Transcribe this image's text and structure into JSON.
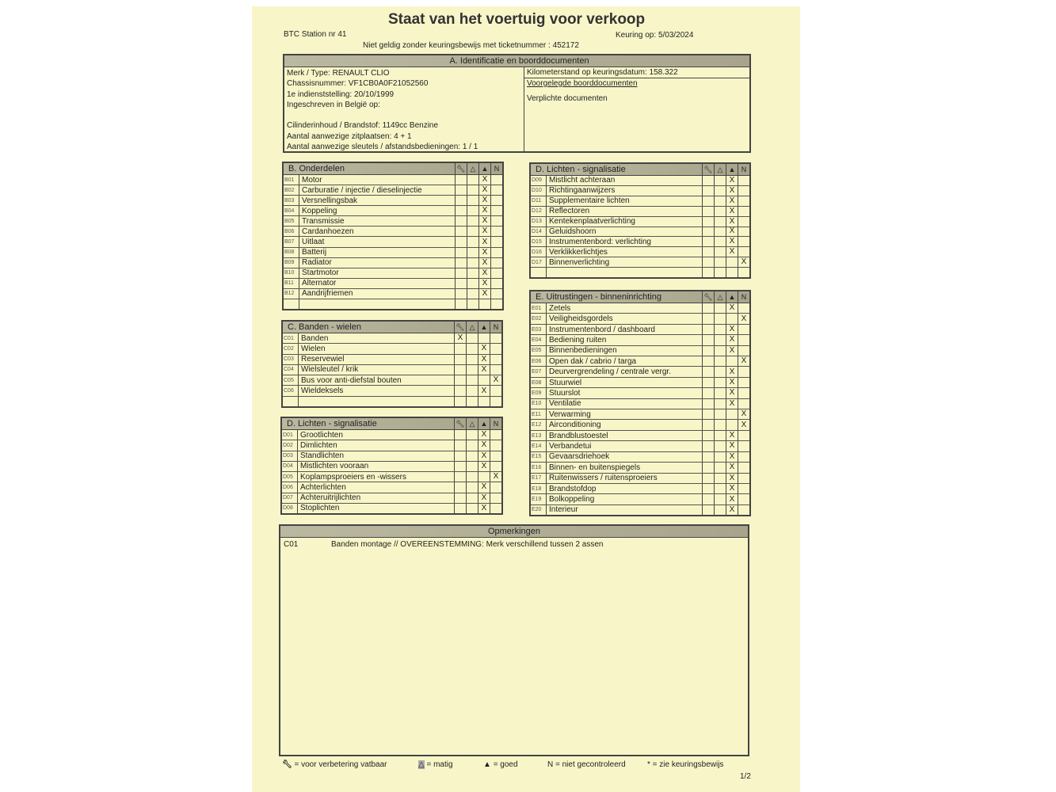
{
  "header": {
    "title": "Staat van het voertuig voor verkoop",
    "station": "BTC Station nr 41",
    "keuring_label": "Keuring op:",
    "keuring_date": "5/03/2024",
    "ticket_note": "Niet geldig zonder keuringsbewijs met ticketnummer :",
    "ticket_number": "452172"
  },
  "identificatie": {
    "title": "A. Identificatie en boorddocumenten",
    "left": [
      "Merk / Type:  RENAULT CLIO",
      "Chassisnummer:  VF1CB0A0F21052560",
      "1e indienststelling:  20/10/1999",
      "Ingeschreven in België op:",
      "",
      "Cilinderinhoud / Brandstof:  1149cc Benzine",
      "Aantal aanwezige zitplaatsen:  4 + 1",
      "Aantal aanwezige sleutels / afstandsbedieningen:  1 / 1"
    ],
    "km_label": "Kilometerstand op keuringsdatum:",
    "km_value": "158.322",
    "docs_label": "Voorgelegde boorddocumenten",
    "verplicht": "Verplichte documenten"
  },
  "columns": {
    "verbetering": "wrench-icon",
    "matig": "warning-triangle-icon",
    "goed": "thumbs-up-icon",
    "niet": "N"
  },
  "tables": {
    "b": {
      "title": "B. Onderdelen",
      "blank": true,
      "items": [
        {
          "code": "B01",
          "name": "Motor",
          "mark": "goed"
        },
        {
          "code": "B02",
          "name": "Carburatie / injectie / dieselinjectie",
          "mark": "goed"
        },
        {
          "code": "B03",
          "name": "Versnellingsbak",
          "mark": "goed"
        },
        {
          "code": "B04",
          "name": "Koppeling",
          "mark": "goed"
        },
        {
          "code": "B05",
          "name": "Transmissie",
          "mark": "goed"
        },
        {
          "code": "B06",
          "name": "Cardanhoezen",
          "mark": "goed"
        },
        {
          "code": "B07",
          "name": "Uitlaat",
          "mark": "goed"
        },
        {
          "code": "B08",
          "name": "Batterij",
          "mark": "goed"
        },
        {
          "code": "B09",
          "name": "Radiator",
          "mark": "goed"
        },
        {
          "code": "B10",
          "name": "Startmotor",
          "mark": "goed"
        },
        {
          "code": "B11",
          "name": "Alternator",
          "mark": "goed"
        },
        {
          "code": "B12",
          "name": "Aandrijfriemen",
          "mark": "goed"
        }
      ]
    },
    "c": {
      "title": "C. Banden - wielen",
      "blank": true,
      "items": [
        {
          "code": "C01",
          "name": "Banden",
          "mark": "verbetering"
        },
        {
          "code": "C02",
          "name": "Wielen",
          "mark": "goed"
        },
        {
          "code": "C03",
          "name": "Reservewiel",
          "mark": "goed"
        },
        {
          "code": "C04",
          "name": "Wielsleutel / krik",
          "mark": "goed"
        },
        {
          "code": "C05",
          "name": "Bus voor anti-diefstal bouten",
          "mark": "niet"
        },
        {
          "code": "C06",
          "name": "Wieldeksels",
          "mark": "goed"
        }
      ]
    },
    "d1": {
      "title": "D. Lichten - signalisatie",
      "blank": false,
      "items": [
        {
          "code": "D01",
          "name": "Grootlichten",
          "mark": "goed"
        },
        {
          "code": "D02",
          "name": "Dimlichten",
          "mark": "goed"
        },
        {
          "code": "D03",
          "name": "Standlichten",
          "mark": "goed"
        },
        {
          "code": "D04",
          "name": "Mistlichten vooraan",
          "mark": "goed"
        },
        {
          "code": "D05",
          "name": "Koplampsproeiers en -wissers",
          "mark": "niet"
        },
        {
          "code": "D06",
          "name": "Achterlichten",
          "mark": "goed"
        },
        {
          "code": "D07",
          "name": "Achteruitrijlichten",
          "mark": "goed"
        },
        {
          "code": "D08",
          "name": "Stoplichten",
          "mark": "goed"
        }
      ]
    },
    "d2": {
      "title": "D. Lichten - signalisatie",
      "blank": true,
      "items": [
        {
          "code": "D09",
          "name": "Mistlicht achteraan",
          "mark": "goed"
        },
        {
          "code": "D10",
          "name": "Richtingaanwijzers",
          "mark": "goed"
        },
        {
          "code": "D11",
          "name": "Supplementaire lichten",
          "mark": "goed"
        },
        {
          "code": "D12",
          "name": "Reflectoren",
          "mark": "goed"
        },
        {
          "code": "D13",
          "name": "Kentekenplaatverlichting",
          "mark": "goed"
        },
        {
          "code": "D14",
          "name": "Geluidshoorn",
          "mark": "goed"
        },
        {
          "code": "D15",
          "name": "Instrumentenbord: verlichting",
          "mark": "goed"
        },
        {
          "code": "D16",
          "name": "Verklikkerlichtjes",
          "mark": "goed"
        },
        {
          "code": "D17",
          "name": "Binnenverlichting",
          "mark": "niet"
        }
      ]
    },
    "e": {
      "title": "E. Uitrustingen - binneninrichting",
      "blank": false,
      "items": [
        {
          "code": "E01",
          "name": "Zetels",
          "mark": "goed"
        },
        {
          "code": "E02",
          "name": "Veiligheidsgordels",
          "mark": "niet"
        },
        {
          "code": "E03",
          "name": "Instrumentenbord / dashboard",
          "mark": "goed"
        },
        {
          "code": "E04",
          "name": "Bediening ruiten",
          "mark": "goed"
        },
        {
          "code": "E05",
          "name": "Binnenbedieningen",
          "mark": "goed"
        },
        {
          "code": "E06",
          "name": "Open dak / cabrio / targa",
          "mark": "niet"
        },
        {
          "code": "E07",
          "name": "Deurvergrendeling / centrale vergr.",
          "mark": "goed"
        },
        {
          "code": "E08",
          "name": "Stuurwiel",
          "mark": "goed"
        },
        {
          "code": "E09",
          "name": "Stuurslot",
          "mark": "goed"
        },
        {
          "code": "E10",
          "name": "Ventilatie",
          "mark": "goed"
        },
        {
          "code": "E11",
          "name": "Verwarming",
          "mark": "niet"
        },
        {
          "code": "E12",
          "name": "Airconditioning",
          "mark": "niet"
        },
        {
          "code": "E13",
          "name": "Brandblustoestel",
          "mark": "goed"
        },
        {
          "code": "E14",
          "name": "Verbandetui",
          "mark": "goed"
        },
        {
          "code": "E15",
          "name": "Gevaarsdriehoek",
          "mark": "goed"
        },
        {
          "code": "E16",
          "name": "Binnen- en buitenspiegels",
          "mark": "goed"
        },
        {
          "code": "E17",
          "name": "Ruitenwissers / ruitensproeiers",
          "mark": "goed"
        },
        {
          "code": "E18",
          "name": "Brandstofdop",
          "mark": "goed"
        },
        {
          "code": "E19",
          "name": "Bolkoppeling",
          "mark": "goed"
        },
        {
          "code": "E20",
          "name": "Interieur",
          "mark": "goed"
        }
      ]
    }
  },
  "check_mark": "X",
  "opmerkingen": {
    "title": "Opmerkingen",
    "code": "C01",
    "text": "Banden montage // OVEREENSTEMMING: Merk verschillend tussen 2 assen"
  },
  "legend": {
    "verbetering": "= voor verbetering vatbaar",
    "matig": "= matig",
    "goed": "= goed",
    "niet": "N = niet gecontroleerd",
    "star": "* = zie keuringsbewijs"
  },
  "page": "1/2"
}
